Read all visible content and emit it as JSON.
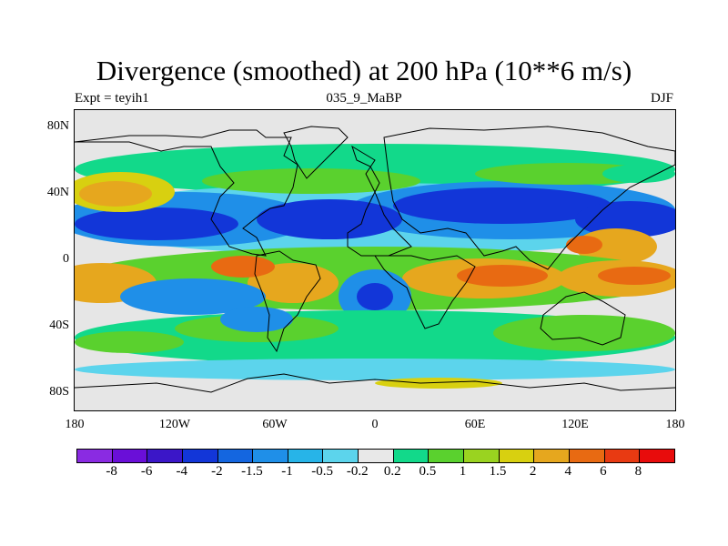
{
  "title": "Divergence (smoothed) at 200 hPa (10**6 m/s)",
  "subtitle_left": "Expt = teyih1",
  "subtitle_center": "035_9_MaBP",
  "subtitle_right": "DJF",
  "lat_labels": [
    "80N",
    "40N",
    "0",
    "40S",
    "80S"
  ],
  "lon_labels": [
    "180",
    "120W",
    "60W",
    "0",
    "60E",
    "120E",
    "180"
  ],
  "colorbar": {
    "colors": [
      "#8a2be2",
      "#6a0fd8",
      "#3b16c8",
      "#1236d8",
      "#1466e0",
      "#1f8fe8",
      "#27b4e8",
      "#5cd4ec",
      "#e8e8e8",
      "#12d98a",
      "#5ad12e",
      "#9ad320",
      "#d8d010",
      "#e6a71e",
      "#e86a12",
      "#e83a12",
      "#e80c0c"
    ],
    "labels": [
      "-8",
      "-6",
      "-4",
      "-2",
      "-1.5",
      "-1",
      "-0.5",
      "-0.2",
      "0.2",
      "0.5",
      "1",
      "1.5",
      "2",
      "4",
      "6",
      "8"
    ]
  },
  "map_colors": {
    "neg_light": "#5cd4ec",
    "neg_mid": "#1f8fe8",
    "neg_strong": "#1236d8",
    "pos_light": "#12d98a",
    "pos_mid": "#5ad12e",
    "pos_yellow": "#d8d010",
    "pos_orange": "#e6a71e",
    "pos_red": "#e86a12",
    "neutral": "#e6e6e6"
  }
}
